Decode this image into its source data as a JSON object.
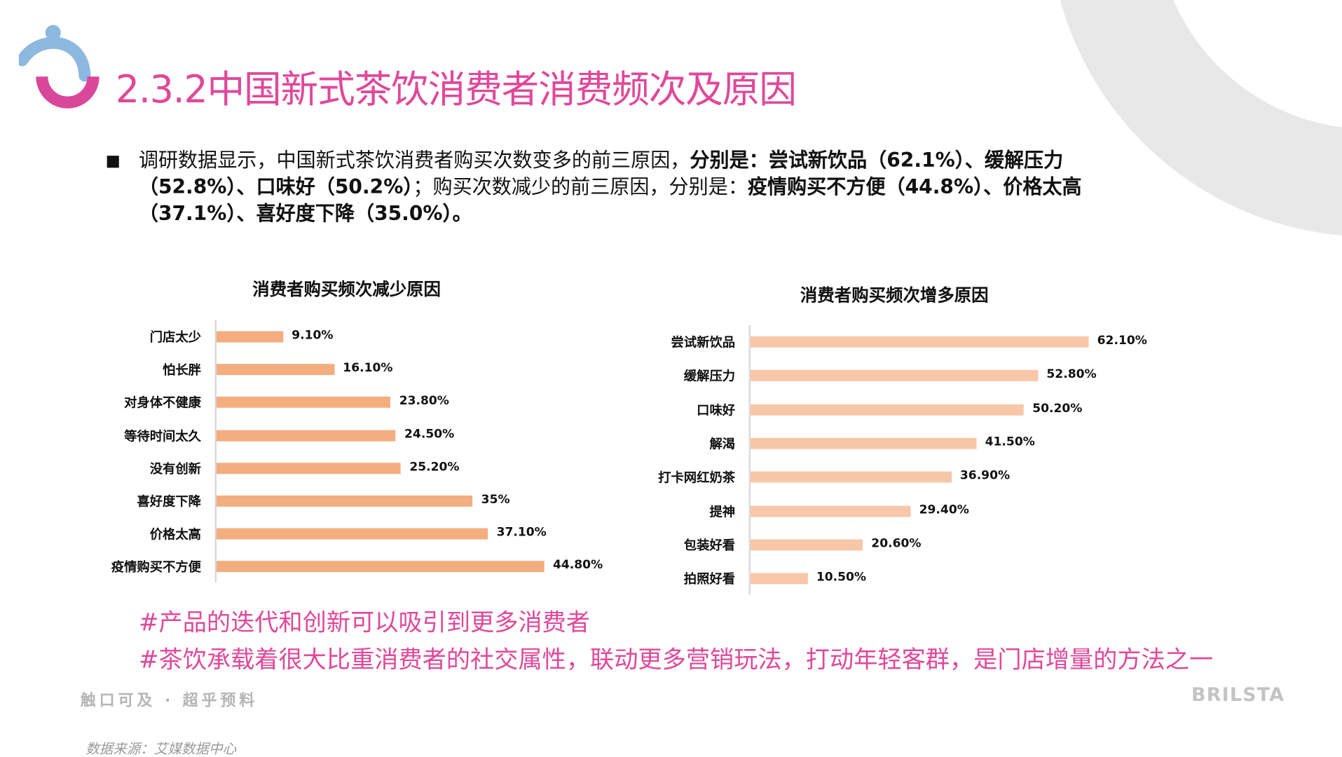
{
  "title": "2.3.2中国新式茶饮消费者消费频次及原因",
  "summary": {
    "p1": "调研数据显示，中国新式茶饮消费者购买次数变多的前三原因，",
    "p2": "分别是：尝试新饮品（62.1%）、缓解压力（52.8%）、口味好（50.2%）",
    "p3": "；购买次数减少的前三原因，分别是：",
    "p4": "疫情购买不方便（44.8%）、价格太高（37.1%）、喜好度下降（35.0%）。"
  },
  "colors": {
    "title": "#e0489a",
    "bar_decrease": "#f3ad7f",
    "bar_increase": "#f7c7a8",
    "arc": "#e8e8e8",
    "logo_blue": "#8db8e0",
    "logo_pink": "#d9479b"
  },
  "chart_data": [
    {
      "type": "bar",
      "orientation": "horizontal",
      "title": "消费者购买频次减少原因",
      "categories": [
        "门店太少",
        "怕长胖",
        "对身体不健康",
        "等待时间太久",
        "没有创新",
        "喜好度下降",
        "价格太高",
        "疫情购买不方便"
      ],
      "values": [
        9.1,
        16.1,
        23.8,
        24.5,
        25.2,
        35,
        37.1,
        44.8
      ],
      "labels": [
        "9.10%",
        "16.10%",
        "23.80%",
        "24.50%",
        "25.20%",
        "35%",
        "37.10%",
        "44.80%"
      ],
      "grid": false
    },
    {
      "type": "bar",
      "orientation": "horizontal",
      "title": "消费者购买频次增多原因",
      "categories": [
        "尝试新饮品",
        "缓解压力",
        "口味好",
        "解渴",
        "打卡网红奶茶",
        "提神",
        "包装好看",
        "拍照好看"
      ],
      "values": [
        62.1,
        52.8,
        50.2,
        41.5,
        36.9,
        29.4,
        20.6,
        10.5
      ],
      "labels": [
        "62.10%",
        "52.80%",
        "50.20%",
        "41.50%",
        "36.90%",
        "29.40%",
        "20.60%",
        "10.50%"
      ],
      "grid": false
    }
  ],
  "notes": [
    "#产品的迭代和创新可以吸引到更多消费者",
    "#茶饮承载着很大比重消费者的社交属性，联动更多营销玩法，打动年轻客群，是门店增量的方法之一"
  ],
  "footer": {
    "slogan": "触口可及 · 超乎预料",
    "brand": "BRILSTA",
    "source": "数据来源：艾媒数据中心"
  }
}
